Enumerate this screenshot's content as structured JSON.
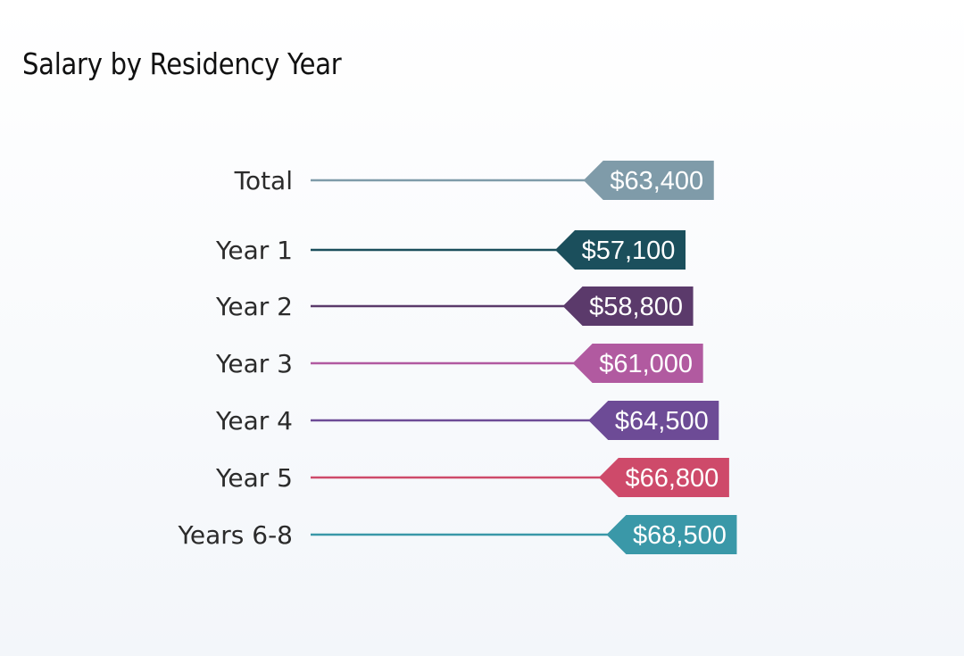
{
  "title": "Salary by Residency Year",
  "chart_data": {
    "type": "bar",
    "title": "Salary by Residency Year",
    "xlabel": "",
    "ylabel": "",
    "xlim": [
      0,
      72000
    ],
    "grid": false,
    "legend": "none",
    "categories": [
      "Total",
      "Year 1",
      "Year 2",
      "Year 3",
      "Year 4",
      "Year 5",
      "Years 6-8"
    ],
    "values": [
      63400,
      57100,
      58800,
      61000,
      64500,
      66800,
      68500
    ],
    "value_labels": [
      "$63,400",
      "$57,100",
      "$58,800",
      "$61,000",
      "$64,500",
      "$66,800",
      "$68,500"
    ],
    "colors": [
      "#7f9ba9",
      "#1b4f5c",
      "#5b3a6b",
      "#b15aa0",
      "#6d4b96",
      "#ce4a6a",
      "#3a98a8"
    ]
  }
}
